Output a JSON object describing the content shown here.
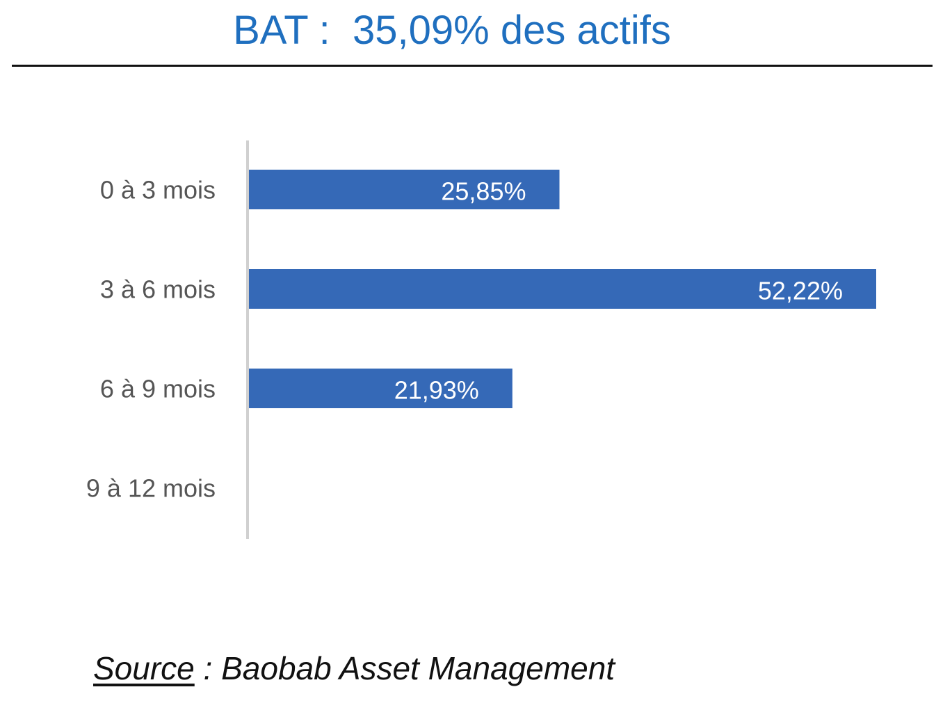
{
  "title": "BAT :  35,09% des actifs",
  "source": {
    "label": "Source",
    "text": " : Baobab Asset Management"
  },
  "colors": {
    "title": "#1f6fbf",
    "bar": "#3569b7",
    "axis": "#d0d0d0",
    "rule": "#111111"
  },
  "chart_data": {
    "type": "bar",
    "orientation": "horizontal",
    "categories": [
      "0 à 3 mois",
      "3 à 6 mois",
      "6 à 9 mois",
      "9 à 12 mois"
    ],
    "values": [
      25.85,
      52.22,
      21.93,
      null
    ],
    "data_labels": [
      "25,85%",
      "52,22%",
      "21,93%",
      ""
    ],
    "unit": "%",
    "xlim": [
      0,
      52.22
    ],
    "grid": false,
    "legend": "none"
  }
}
